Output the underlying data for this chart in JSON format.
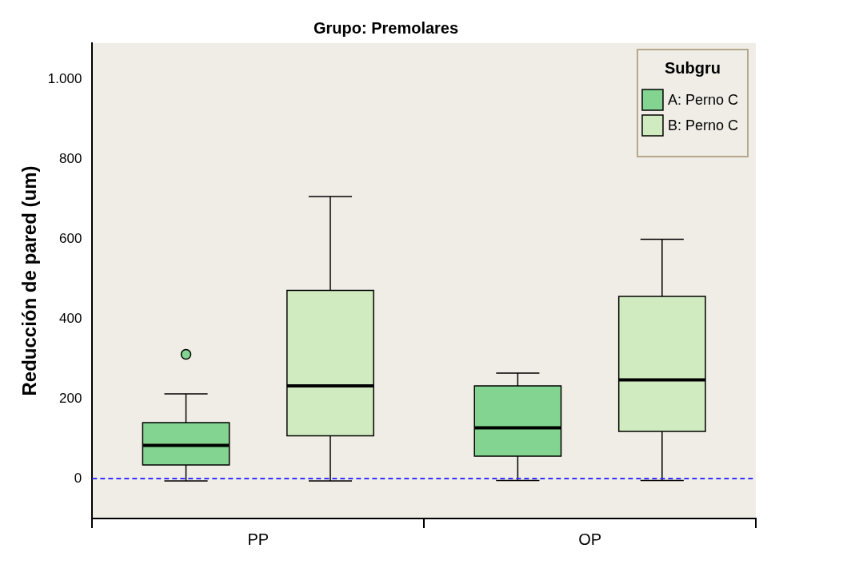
{
  "chart_data": {
    "type": "box",
    "title": "Grupo: Premolares",
    "ylabel": "Reducción de pared (um)",
    "legend_title": "Subgru",
    "legend": "top right",
    "categories": [
      "PP",
      "OP"
    ],
    "ylim": [
      -100,
      1090
    ],
    "yticks": [
      0,
      200,
      400,
      600,
      800,
      {
        "value": 1000,
        "label": "1.000"
      }
    ],
    "ref_lines": [
      {
        "axis": "y",
        "value": 0,
        "color": "#3333ff",
        "line_style": "dashed"
      }
    ],
    "series": [
      {
        "name": "A: Perno C",
        "color": "#82d490",
        "boxes": [
          {
            "low": -6,
            "q1": 34,
            "median": 83,
            "q3": 140,
            "high": 212,
            "outliers": [
              311
            ]
          },
          {
            "low": -5,
            "q1": 56,
            "median": 127,
            "q3": 232,
            "high": 264
          }
        ]
      },
      {
        "name": "B: Perno C",
        "color": "#d0ebc0",
        "boxes": [
          {
            "low": -6,
            "q1": 107,
            "median": 232,
            "q3": 471,
            "high": 706
          },
          {
            "low": -5,
            "q1": 118,
            "median": 247,
            "q3": 456,
            "high": 599
          }
        ]
      }
    ]
  }
}
